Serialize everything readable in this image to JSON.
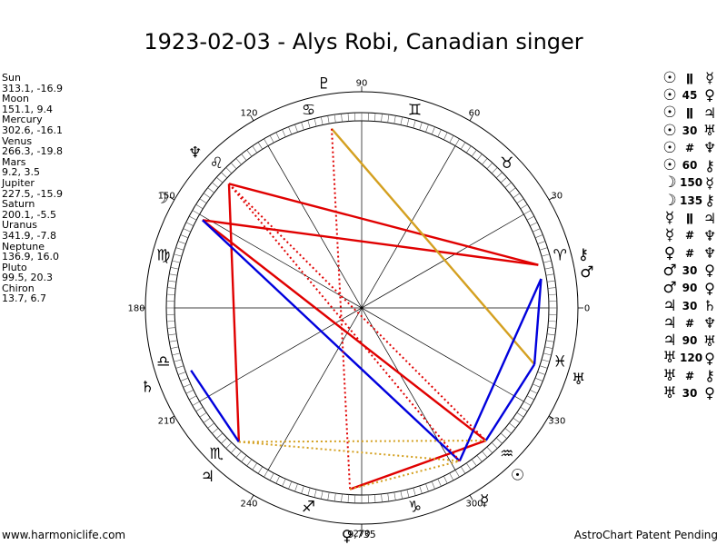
{
  "title": "1923-02-03 - Alys Robi, Canadian singer",
  "footer": {
    "left": "www.harmoniclife.com",
    "right": "AstroChart Patent Pending"
  },
  "planet_positions": [
    {
      "name": "Sun",
      "value": "313.1, -16.9"
    },
    {
      "name": "Moon",
      "value": "151.1, 9.4"
    },
    {
      "name": "Mercury",
      "value": "302.6, -16.1"
    },
    {
      "name": "Venus",
      "value": "266.3, -19.8"
    },
    {
      "name": "Mars",
      "value": "9.2, 3.5"
    },
    {
      "name": "Jupiter",
      "value": "227.5, -15.9"
    },
    {
      "name": "Saturn",
      "value": "200.1, -5.5"
    },
    {
      "name": "Uranus",
      "value": "341.9, -7.8"
    },
    {
      "name": "Neptune",
      "value": "136.9, 16.0"
    },
    {
      "name": "Pluto",
      "value": "99.5, 20.3"
    },
    {
      "name": "Chiron",
      "value": "13.7, 6.7"
    }
  ],
  "aspect_list": [
    {
      "p1": "☉",
      "aspect": "ǁ",
      "p2": "☿"
    },
    {
      "p1": "☉",
      "aspect": "45",
      "p2": "♀"
    },
    {
      "p1": "☉",
      "aspect": "ǁ",
      "p2": "♃"
    },
    {
      "p1": "☉",
      "aspect": "30",
      "p2": "♅"
    },
    {
      "p1": "☉",
      "aspect": "#",
      "p2": "♆"
    },
    {
      "p1": "☉",
      "aspect": "60",
      "p2": "⚷"
    },
    {
      "p1": "☽",
      "aspect": "150",
      "p2": "☿"
    },
    {
      "p1": "☽",
      "aspect": "135",
      "p2": "⚷"
    },
    {
      "p1": "☿",
      "aspect": "ǁ",
      "p2": "♃"
    },
    {
      "p1": "☿",
      "aspect": "#",
      "p2": "♆"
    },
    {
      "p1": "♀",
      "aspect": "#",
      "p2": "♆"
    },
    {
      "p1": "♂",
      "aspect": "30",
      "p2": "♀"
    },
    {
      "p1": "♂",
      "aspect": "90",
      "p2": "♀"
    },
    {
      "p1": "♃",
      "aspect": "30",
      "p2": "♄"
    },
    {
      "p1": "♃",
      "aspect": "#",
      "p2": "♆"
    },
    {
      "p1": "♃",
      "aspect": "90",
      "p2": "♅"
    },
    {
      "p1": "♅",
      "aspect": "120",
      "p2": "♀"
    },
    {
      "p1": "♅",
      "aspect": "#",
      "p2": "⚷"
    },
    {
      "p1": "♅",
      "aspect": "30",
      "p2": "♀"
    }
  ],
  "chart_data": {
    "type": "astrological-wheel",
    "title": "1923-02-03 - Alys Robi, Canadian singer",
    "degree_labels": [
      "0",
      "30",
      "60",
      "90",
      "120",
      "150",
      "180",
      "210",
      "240",
      "270",
      "300",
      "330"
    ],
    "south_label": "9,735",
    "signs": [
      {
        "glyph": "♈",
        "lon": 15
      },
      {
        "glyph": "♉",
        "lon": 45
      },
      {
        "glyph": "♊",
        "lon": 75
      },
      {
        "glyph": "♋",
        "lon": 105
      },
      {
        "glyph": "♌",
        "lon": 135
      },
      {
        "glyph": "♍",
        "lon": 165
      },
      {
        "glyph": "♎",
        "lon": 195
      },
      {
        "glyph": "♏",
        "lon": 225
      },
      {
        "glyph": "♐",
        "lon": 255
      },
      {
        "glyph": "♑",
        "lon": 285
      },
      {
        "glyph": "♒",
        "lon": 315
      },
      {
        "glyph": "♓",
        "lon": 345
      }
    ],
    "planets": [
      {
        "name": "Sun",
        "glyph": "☉",
        "lon": 313.1
      },
      {
        "name": "Moon",
        "glyph": "☽",
        "lon": 151.1
      },
      {
        "name": "Mercury",
        "glyph": "☿",
        "lon": 302.6
      },
      {
        "name": "Venus",
        "glyph": "♀",
        "lon": 266.3
      },
      {
        "name": "Mars",
        "glyph": "♂",
        "lon": 9.2
      },
      {
        "name": "Jupiter",
        "glyph": "♃",
        "lon": 227.5
      },
      {
        "name": "Saturn",
        "glyph": "♄",
        "lon": 200.1
      },
      {
        "name": "Uranus",
        "glyph": "♅",
        "lon": 341.9
      },
      {
        "name": "Neptune",
        "glyph": "♆",
        "lon": 136.9
      },
      {
        "name": "Pluto",
        "glyph": "♇",
        "lon": 99.5
      },
      {
        "name": "Chiron",
        "glyph": "⚷",
        "lon": 13.7
      }
    ],
    "aspect_lines": [
      {
        "from": 313.1,
        "to": 151.1,
        "color": "#e00000",
        "style": "solid"
      },
      {
        "from": 227.5,
        "to": 136.9,
        "color": "#e00000",
        "style": "solid"
      },
      {
        "from": 151.1,
        "to": 13.7,
        "color": "#e00000",
        "style": "solid"
      },
      {
        "from": 136.9,
        "to": 13.7,
        "color": "#e00000",
        "style": "solid"
      },
      {
        "from": 266.3,
        "to": 313.1,
        "color": "#e00000",
        "style": "solid"
      },
      {
        "from": 99.5,
        "to": 341.9,
        "color": "#d4a020",
        "style": "solid"
      },
      {
        "from": 151.1,
        "to": 302.6,
        "color": "#0000dd",
        "style": "solid"
      },
      {
        "from": 200.1,
        "to": 227.5,
        "color": "#0000dd",
        "style": "solid"
      },
      {
        "from": 302.6,
        "to": 9.2,
        "color": "#0000dd",
        "style": "solid"
      },
      {
        "from": 313.1,
        "to": 341.9,
        "color": "#0000dd",
        "style": "solid"
      },
      {
        "from": 9.2,
        "to": 341.9,
        "color": "#0000dd",
        "style": "solid"
      },
      {
        "from": 99.5,
        "to": 266.3,
        "color": "#e00000",
        "style": "dotted"
      },
      {
        "from": 136.9,
        "to": 302.6,
        "color": "#e00000",
        "style": "dotted"
      },
      {
        "from": 136.9,
        "to": 313.1,
        "color": "#e00000",
        "style": "dotted"
      },
      {
        "from": 227.5,
        "to": 302.6,
        "color": "#d4a020",
        "style": "dotted"
      },
      {
        "from": 227.5,
        "to": 313.1,
        "color": "#d4a020",
        "style": "dotted"
      },
      {
        "from": 266.3,
        "to": 302.6,
        "color": "#d4a020",
        "style": "dotted"
      }
    ]
  }
}
